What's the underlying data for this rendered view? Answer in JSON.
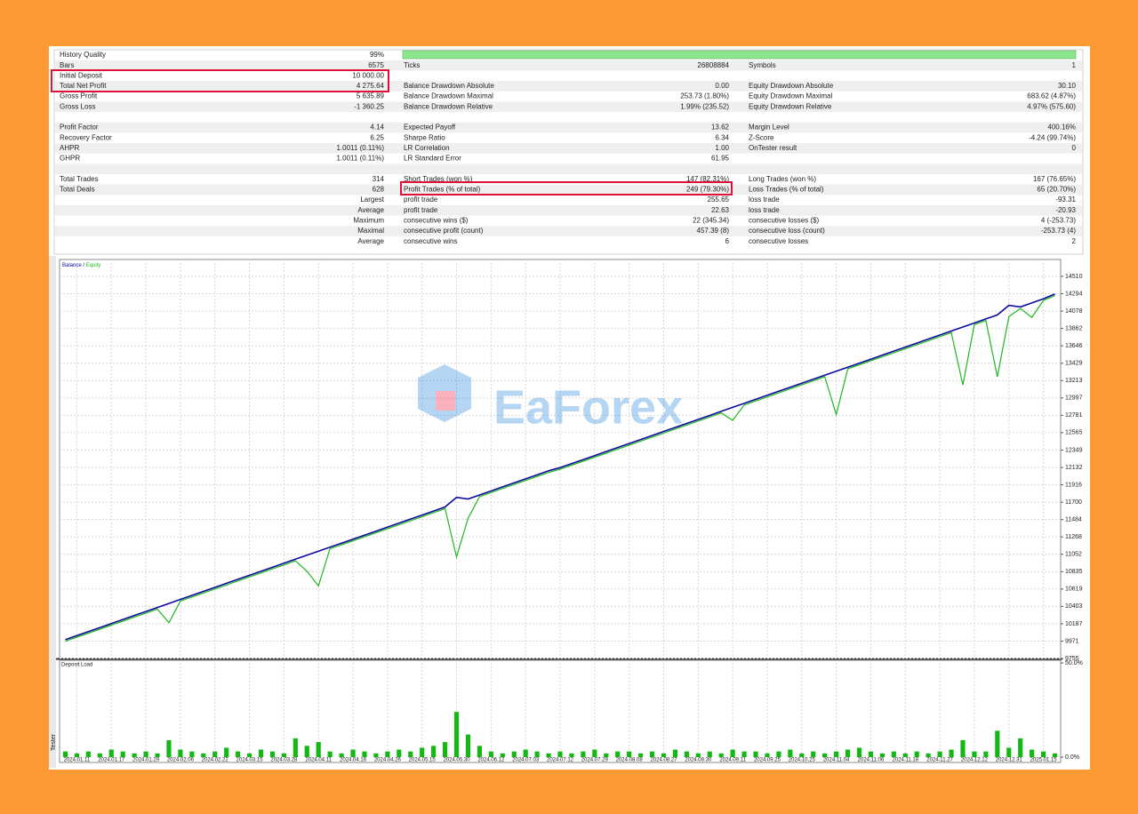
{
  "report": {
    "sections": [
      [
        {
          "left": {
            "label": "History Quality",
            "value": "99%"
          }
        },
        {
          "left": {
            "label": "Bars",
            "value": "6575"
          },
          "middle": {
            "label": "Ticks",
            "value": "26808884"
          },
          "right": {
            "label": "Symbols",
            "value": "1"
          }
        },
        {
          "left": {
            "label": "Initial Deposit",
            "value": "10 000.00"
          }
        },
        {
          "left": {
            "label": "Total Net Profit",
            "value": "4 275.64"
          },
          "middle": {
            "label": "Balance Drawdown Absolute",
            "value": "0.00"
          },
          "right": {
            "label": "Equity Drawdown Absolute",
            "value": "30.10"
          }
        },
        {
          "left": {
            "label": "Gross Profit",
            "value": "5 635.89"
          },
          "middle": {
            "label": "Balance Drawdown Maximal",
            "value": "253.73 (1.80%)"
          },
          "right": {
            "label": "Equity Drawdown Maximal",
            "value": "683.62 (4.87%)"
          }
        },
        {
          "left": {
            "label": "Gross Loss",
            "value": "-1 360.25"
          },
          "middle": {
            "label": "Balance Drawdown Relative",
            "value": "1.99% (235.52)"
          },
          "right": {
            "label": "Equity Drawdown Relative",
            "value": "4.97% (575.60)"
          }
        }
      ],
      [
        {
          "left": {
            "label": "Profit Factor",
            "value": "4.14"
          },
          "middle": {
            "label": "Expected Payoff",
            "value": "13.62"
          },
          "right": {
            "label": "Margin Level",
            "value": "400.16%"
          }
        },
        {
          "left": {
            "label": "Recovery Factor",
            "value": "6.25"
          },
          "middle": {
            "label": "Sharpe Ratio",
            "value": "6.34"
          },
          "right": {
            "label": "Z-Score",
            "value": "-4.24 (99.74%)"
          }
        },
        {
          "left": {
            "label": "AHPR",
            "value": "1.0011 (0.11%)"
          },
          "middle": {
            "label": "LR Correlation",
            "value": "1.00"
          },
          "right": {
            "label": "OnTester result",
            "value": "0"
          }
        },
        {
          "left": {
            "label": "GHPR",
            "value": "1.0011 (0.11%)"
          },
          "middle": {
            "label": "LR Standard Error",
            "value": "61.95"
          }
        }
      ],
      [
        {
          "left": {
            "label": "Total Trades",
            "value": "314"
          },
          "middle": {
            "label": "Short Trades (won %)",
            "value": "147 (82.31%)"
          },
          "right": {
            "label": "Long Trades (won %)",
            "value": "167 (76.65%)"
          }
        },
        {
          "left": {
            "label": "Total Deals",
            "value": "628"
          },
          "middle": {
            "label": "Profit Trades (% of total)",
            "value": "249 (79.30%)"
          },
          "right": {
            "label": "Loss Trades (% of total)",
            "value": "65 (20.70%)"
          }
        },
        {
          "left": {
            "label": "Largest"
          },
          "middle": {
            "label": "profit trade",
            "value": "255.65"
          },
          "right": {
            "label": "loss trade",
            "value": "-93.31"
          }
        },
        {
          "left": {
            "label": "Average"
          },
          "middle": {
            "label": "profit trade",
            "value": "22.63"
          },
          "right": {
            "label": "loss trade",
            "value": "-20.93"
          }
        },
        {
          "left": {
            "label": "Maximum"
          },
          "middle": {
            "label": "consecutive wins ($)",
            "value": "22 (345.34)"
          },
          "right": {
            "label": "consecutive losses ($)",
            "value": "4 (-253.73)"
          }
        },
        {
          "left": {
            "label": "Maximal"
          },
          "middle": {
            "label": "consecutive profit (count)",
            "value": "457.39 (8)"
          },
          "right": {
            "label": "consecutive loss (count)",
            "value": "-253.73 (4)"
          }
        },
        {
          "left": {
            "label": "Average"
          },
          "middle": {
            "label": "consecutive wins",
            "value": "6"
          },
          "right": {
            "label": "consecutive losses",
            "value": "2"
          }
        }
      ]
    ]
  },
  "watermark": "EaForex",
  "tab": "Tester",
  "chart_data": [
    {
      "type": "line",
      "legend_separator": " / ",
      "grid": true,
      "categories": [
        null,
        "2024.01.11",
        null,
        null,
        "2024.01.17",
        null,
        null,
        "2024.01.29",
        null,
        null,
        "2024.02.06",
        null,
        null,
        "2024.02.22",
        null,
        null,
        "2024.03.15",
        null,
        null,
        "2024.03.28",
        null,
        null,
        "2024.04.11",
        null,
        null,
        "2024.04.16",
        null,
        null,
        "2024.04.26",
        null,
        null,
        "2024.05.15",
        null,
        null,
        "2024.05.30",
        null,
        null,
        "2024.06.12",
        null,
        null,
        "2024.07.03",
        null,
        null,
        "2024.07.12",
        null,
        null,
        "2024.07.29",
        null,
        null,
        "2024.08.08",
        null,
        null,
        "2024.08.27",
        null,
        null,
        "2024.08.30",
        null,
        null,
        "2024.09.11",
        null,
        null,
        "2024.09.25",
        null,
        null,
        "2024.10.25",
        null,
        null,
        "2024.11.04",
        null,
        null,
        "2024.11.06",
        null,
        null,
        "2024.11.18",
        null,
        null,
        "2024.11.27",
        null,
        null,
        "2024.12.12",
        null,
        null,
        "2024.12.31",
        null,
        null,
        "2025.01.15",
        null
      ],
      "series": [
        {
          "name": "Balance",
          "color": "#0a0a9e",
          "values": [
            9990,
            10040,
            10090,
            10140,
            10190,
            10240,
            10290,
            10340,
            10390,
            10440,
            10490,
            10540,
            10590,
            10640,
            10690,
            10740,
            10790,
            10840,
            10890,
            10940,
            10990,
            11040,
            11090,
            11140,
            11190,
            11240,
            11290,
            11340,
            11390,
            11440,
            11490,
            11540,
            11590,
            11640,
            11760,
            11740,
            11790,
            11840,
            11890,
            11940,
            11990,
            12040,
            12090,
            12130,
            12180,
            12230,
            12280,
            12330,
            12380,
            12430,
            12480,
            12530,
            12580,
            12630,
            12680,
            12730,
            12780,
            12830,
            12880,
            12930,
            12980,
            13030,
            13080,
            13130,
            13180,
            13230,
            13280,
            13330,
            13380,
            13430,
            13480,
            13530,
            13580,
            13630,
            13680,
            13730,
            13780,
            13830,
            13880,
            13930,
            13980,
            14030,
            14150,
            14130,
            14180,
            14230,
            14290
          ]
        },
        {
          "name": "Equity",
          "color": "#1fb71f",
          "values": [
            9970,
            10020,
            10070,
            10120,
            10170,
            10220,
            10270,
            10320,
            10370,
            10200,
            10470,
            10520,
            10570,
            10620,
            10670,
            10720,
            10770,
            10820,
            10870,
            10920,
            10970,
            10840,
            10660,
            11120,
            11170,
            11220,
            11270,
            11320,
            11370,
            11420,
            11470,
            11520,
            11570,
            11620,
            11020,
            11500,
            11770,
            11820,
            11870,
            11920,
            11970,
            12020,
            12070,
            12110,
            12160,
            12210,
            12260,
            12310,
            12360,
            12410,
            12460,
            12510,
            12560,
            12610,
            12660,
            12710,
            12760,
            12810,
            12720,
            12910,
            12960,
            13010,
            13060,
            13110,
            13160,
            13210,
            13260,
            12790,
            13360,
            13410,
            13460,
            13510,
            13560,
            13610,
            13660,
            13710,
            13760,
            13810,
            13160,
            13910,
            13960,
            13260,
            14010,
            14110,
            14000,
            14210,
            14270
          ]
        }
      ],
      "ylim": [
        9755,
        14676
      ],
      "yticks": [
        9755,
        9971,
        10187,
        10403,
        10619,
        10835,
        11052,
        11268,
        11484,
        11700,
        11916,
        12132,
        12349,
        12565,
        12781,
        12997,
        13213,
        13429,
        13646,
        13862,
        14078,
        14294,
        14510
      ]
    },
    {
      "type": "bar",
      "title": "Deposit Load",
      "color": "#14b814",
      "values": [
        3,
        2,
        3,
        2,
        4,
        3,
        2,
        3,
        2,
        9,
        4,
        3,
        2,
        3,
        5,
        3,
        2,
        4,
        3,
        2,
        10,
        6,
        8,
        3,
        2,
        4,
        3,
        2,
        3,
        4,
        3,
        5,
        6,
        8,
        24,
        12,
        6,
        3,
        2,
        3,
        4,
        3,
        2,
        3,
        2,
        3,
        4,
        2,
        3,
        3,
        2,
        3,
        2,
        4,
        3,
        2,
        3,
        2,
        4,
        3,
        3,
        2,
        3,
        4,
        2,
        3,
        2,
        3,
        4,
        5,
        3,
        2,
        3,
        2,
        3,
        2,
        3,
        4,
        9,
        3,
        3,
        14,
        5,
        10,
        4,
        3,
        2
      ],
      "ylim": [
        0,
        50
      ],
      "yticks": [
        {
          "value": 50,
          "label": "50.0%"
        },
        {
          "value": 0,
          "label": "0.0%"
        }
      ]
    }
  ]
}
